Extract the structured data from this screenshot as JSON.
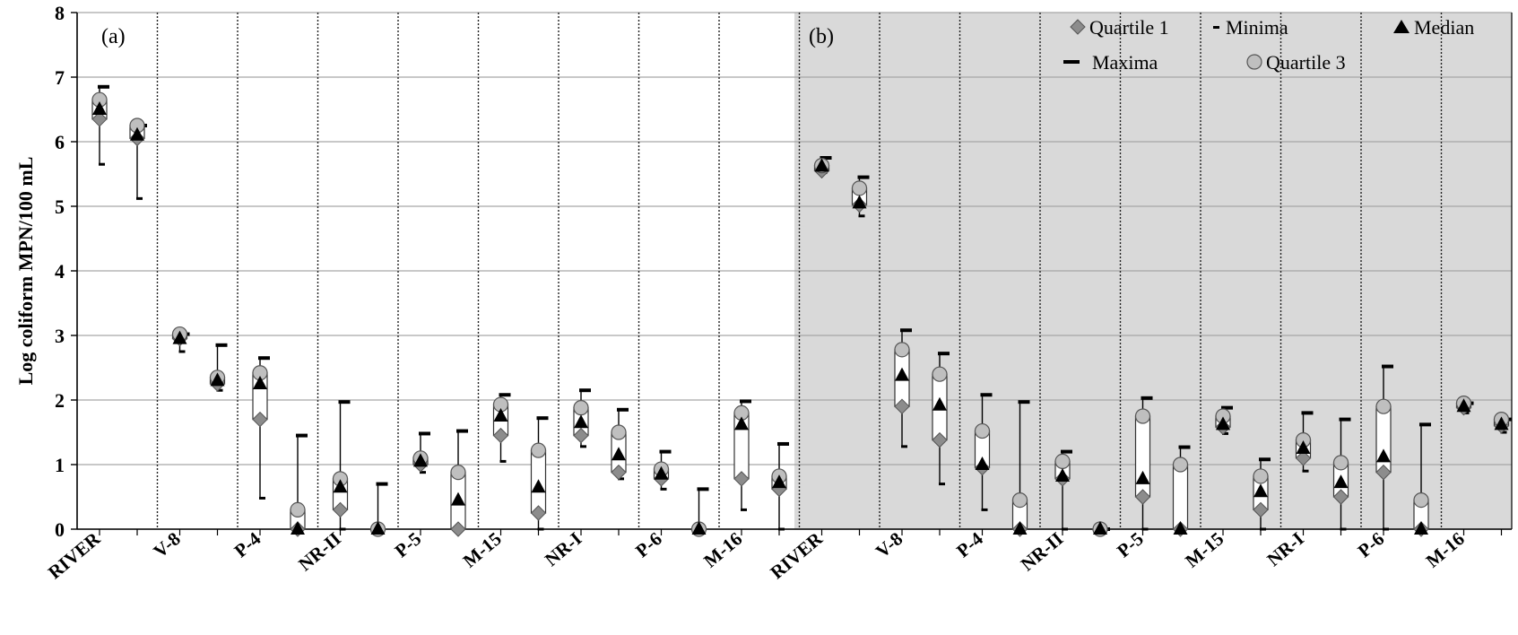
{
  "chart_data": {
    "type": "box",
    "ylabel": "Log coliform MPN/100 mL",
    "ylim": [
      0,
      8
    ],
    "yticks": [
      0,
      1,
      2,
      3,
      4,
      5,
      6,
      7,
      8
    ],
    "grid": "horizontal major lines; dotted vertical group separators",
    "legend": {
      "placement": "top-right",
      "entries": [
        {
          "key": "q1",
          "label": "Quartile 1",
          "marker": "diamond"
        },
        {
          "key": "min",
          "label": "Minima",
          "marker": "dash"
        },
        {
          "key": "median",
          "label": "Median",
          "marker": "triangle"
        },
        {
          "key": "max",
          "label": "Maxima",
          "marker": "bar"
        },
        {
          "key": "q3",
          "label": "Quartile 3",
          "marker": "circle"
        }
      ]
    },
    "panels": [
      {
        "tag": "(a)",
        "background": "#ffffff",
        "categories": [
          "RIVER",
          "V-8",
          "P-4",
          "NR-II",
          "P-5",
          "M-15",
          "NR-I",
          "P-6",
          "M-16"
        ],
        "boxes": [
          {
            "min": 5.65,
            "q1": 6.35,
            "median": 6.5,
            "q3": 6.65,
            "max": 6.85
          },
          {
            "min": 5.12,
            "q1": 6.05,
            "median": 6.1,
            "q3": 6.25,
            "max": 6.25
          },
          {
            "min": 2.75,
            "q1": 2.95,
            "median": 2.95,
            "q3": 3.02,
            "max": 3.02
          },
          {
            "min": 2.15,
            "q1": 2.25,
            "median": 2.3,
            "q3": 2.35,
            "max": 2.85
          },
          {
            "min": 0.48,
            "q1": 1.7,
            "median": 2.25,
            "q3": 2.42,
            "max": 2.65
          },
          {
            "min": 0.0,
            "q1": 0.0,
            "median": 0.0,
            "q3": 0.3,
            "max": 1.45
          },
          {
            "min": 0.0,
            "q1": 0.3,
            "median": 0.65,
            "q3": 0.78,
            "max": 1.97
          },
          {
            "min": 0.0,
            "q1": 0.0,
            "median": 0.0,
            "q3": 0.0,
            "max": 0.7
          },
          {
            "min": 0.88,
            "q1": 1.0,
            "median": 1.05,
            "q3": 1.1,
            "max": 1.48
          },
          {
            "min": 0.0,
            "q1": 0.0,
            "median": 0.45,
            "q3": 0.88,
            "max": 1.52
          },
          {
            "min": 1.05,
            "q1": 1.45,
            "median": 1.75,
            "q3": 1.93,
            "max": 2.08
          },
          {
            "min": 0.0,
            "q1": 0.25,
            "median": 0.65,
            "q3": 1.22,
            "max": 1.72
          },
          {
            "min": 1.28,
            "q1": 1.45,
            "median": 1.65,
            "q3": 1.88,
            "max": 2.15
          },
          {
            "min": 0.78,
            "q1": 0.88,
            "median": 1.15,
            "q3": 1.5,
            "max": 1.85
          },
          {
            "min": 0.62,
            "q1": 0.78,
            "median": 0.85,
            "q3": 0.93,
            "max": 1.2
          },
          {
            "min": 0.0,
            "q1": 0.0,
            "median": 0.0,
            "q3": 0.0,
            "max": 0.62
          },
          {
            "min": 0.3,
            "q1": 0.78,
            "median": 1.62,
            "q3": 1.8,
            "max": 1.98
          },
          {
            "min": 0.0,
            "q1": 0.62,
            "median": 0.72,
            "q3": 0.82,
            "max": 1.32
          }
        ]
      },
      {
        "tag": "(b)",
        "background": "#d9d9d9",
        "categories": [
          "RIVER",
          "V-8",
          "P-4",
          "NR-II",
          "P-5",
          "M-15",
          "NR-I",
          "P-6",
          "M-16"
        ],
        "boxes": [
          {
            "min": 5.52,
            "q1": 5.55,
            "median": 5.62,
            "q3": 5.63,
            "max": 5.75
          },
          {
            "min": 4.85,
            "q1": 5.02,
            "median": 5.05,
            "q3": 5.28,
            "max": 5.45
          },
          {
            "min": 1.28,
            "q1": 1.9,
            "median": 2.38,
            "q3": 2.78,
            "max": 3.08
          },
          {
            "min": 0.7,
            "q1": 1.38,
            "median": 1.92,
            "q3": 2.4,
            "max": 2.72
          },
          {
            "min": 0.3,
            "q1": 0.95,
            "median": 1.0,
            "q3": 1.52,
            "max": 2.08
          },
          {
            "min": 0.0,
            "q1": 0.0,
            "median": 0.0,
            "q3": 0.45,
            "max": 1.97
          },
          {
            "min": 0.0,
            "q1": 0.78,
            "median": 0.82,
            "q3": 1.05,
            "max": 1.2
          },
          {
            "min": 0.0,
            "q1": 0.0,
            "median": 0.0,
            "q3": 0.0,
            "max": 0.0
          },
          {
            "min": 0.0,
            "q1": 0.5,
            "median": 0.78,
            "q3": 1.75,
            "max": 2.03
          },
          {
            "min": 0.0,
            "q1": 0.0,
            "median": 0.0,
            "q3": 1.0,
            "max": 1.27
          },
          {
            "min": 1.48,
            "q1": 1.58,
            "median": 1.62,
            "q3": 1.75,
            "max": 1.88
          },
          {
            "min": 0.0,
            "q1": 0.3,
            "median": 0.58,
            "q3": 0.82,
            "max": 1.08
          },
          {
            "min": 0.9,
            "q1": 1.1,
            "median": 1.25,
            "q3": 1.38,
            "max": 1.8
          },
          {
            "min": 0.0,
            "q1": 0.5,
            "median": 0.72,
            "q3": 1.03,
            "max": 1.7
          },
          {
            "min": 0.0,
            "q1": 0.88,
            "median": 1.12,
            "q3": 1.9,
            "max": 2.52
          },
          {
            "min": 0.0,
            "q1": 0.0,
            "median": 0.0,
            "q3": 0.45,
            "max": 1.62
          },
          {
            "min": 1.8,
            "q1": 1.88,
            "median": 1.9,
            "q3": 1.95,
            "max": 1.95
          },
          {
            "min": 1.5,
            "q1": 1.6,
            "median": 1.62,
            "q3": 1.7,
            "max": 1.7
          }
        ]
      }
    ]
  }
}
